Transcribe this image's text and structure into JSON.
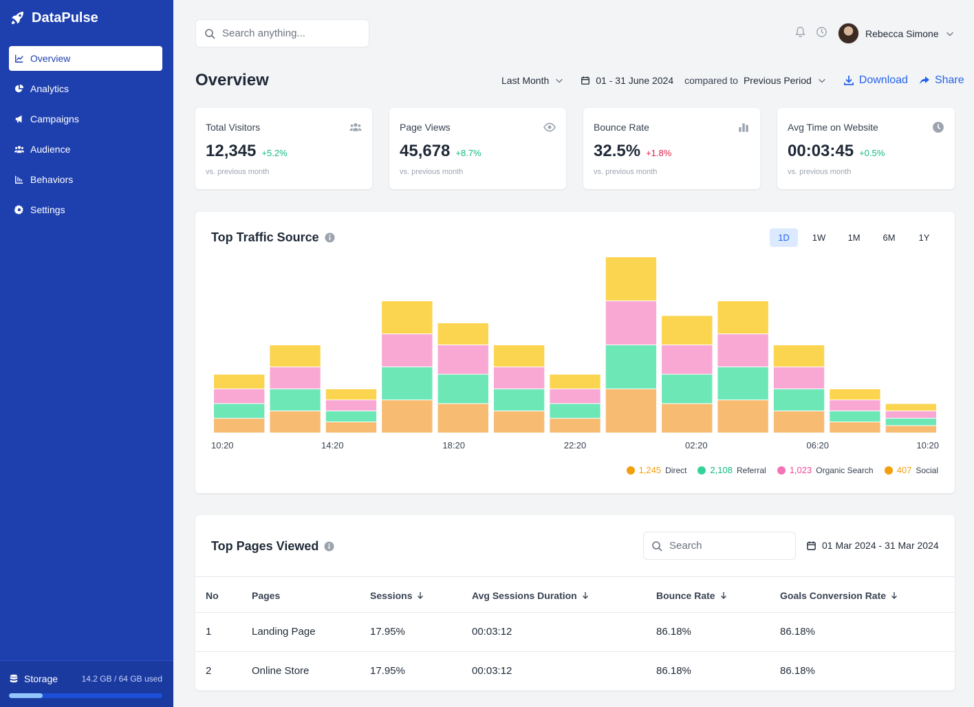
{
  "app": {
    "name": "DataPulse"
  },
  "sidebar": {
    "items": [
      {
        "label": "Overview",
        "icon": "line-chart-icon",
        "active": true
      },
      {
        "label": "Analytics",
        "icon": "pie-chart-icon",
        "active": false
      },
      {
        "label": "Campaigns",
        "icon": "megaphone-icon",
        "active": false
      },
      {
        "label": "Audience",
        "icon": "users-icon",
        "active": false
      },
      {
        "label": "Behaviors",
        "icon": "bar-list-icon",
        "active": false
      },
      {
        "label": "Settings",
        "icon": "gear-icon",
        "active": false
      }
    ],
    "storage": {
      "label": "Storage",
      "used_text": "14.2 GB / 64 GB used",
      "used_fraction": 0.22
    }
  },
  "topbar": {
    "search_placeholder": "Search anything...",
    "user_name": "Rebecca Simone"
  },
  "header": {
    "title": "Overview",
    "period": "Last Month",
    "date_range": "01 - 31 June 2024",
    "compared_label": "compared to",
    "compared_value": "Previous Period",
    "download_label": "Download",
    "share_label": "Share"
  },
  "stats": [
    {
      "label": "Total Visitors",
      "value": "12,345",
      "change": "+5.2%",
      "trend": "up",
      "sub": "vs. previous month",
      "icon": "users-icon"
    },
    {
      "label": "Page Views",
      "value": "45,678",
      "change": "+8.7%",
      "trend": "up",
      "sub": "vs. previous month",
      "icon": "eye-icon"
    },
    {
      "label": "Bounce Rate",
      "value": "32.5%",
      "change": "+1.8%",
      "trend": "bad",
      "sub": "vs. previous month",
      "icon": "bar-chart-icon"
    },
    {
      "label": "Avg Time on Website",
      "value": "00:03:45",
      "change": "+0.5%",
      "trend": "up",
      "sub": "vs. previous month",
      "icon": "clock-icon"
    }
  ],
  "colors": {
    "accent": "#2563eb",
    "sidebar": "#1e40af",
    "positive": "#10b981",
    "negative": "#e11d48",
    "direct": "#f8bb72",
    "referral": "#6ee7b7",
    "organic": "#f9a8d4",
    "social": "#fbd450"
  },
  "traffic": {
    "title": "Top Traffic Source",
    "ranges": [
      {
        "label": "1D",
        "active": true
      },
      {
        "label": "1W",
        "active": false
      },
      {
        "label": "1M",
        "active": false
      },
      {
        "label": "6M",
        "active": false
      },
      {
        "label": "1Y",
        "active": false
      }
    ],
    "legend": [
      {
        "value": "1,245",
        "name": "Direct",
        "dot": "#f59e0b",
        "text": "#f59e0b"
      },
      {
        "value": "2,108",
        "name": "Referral",
        "dot": "#34d399",
        "text": "#10b981"
      },
      {
        "value": "1,023",
        "name": "Organic Search",
        "dot": "#f472b6",
        "text": "#ec4899"
      },
      {
        "value": "407",
        "name": "Social",
        "dot": "#f59e0b",
        "text": "#f59e0b"
      }
    ]
  },
  "chart_data": {
    "type": "bar",
    "stacked": true,
    "categories": [
      "",
      "",
      "",
      "",
      "",
      "",
      "",
      "",
      "",
      "",
      "",
      "",
      ""
    ],
    "x_tick_labels": [
      "10:20",
      "14:20",
      "18:20",
      "22:20",
      "02:20",
      "06:20",
      "10:20"
    ],
    "series": [
      {
        "name": "Direct",
        "color": "#f8bb72",
        "values": [
          2,
          3,
          1.5,
          4.5,
          4,
          3,
          2,
          6,
          4,
          4.5,
          3,
          1.5,
          1
        ]
      },
      {
        "name": "Referral",
        "color": "#6ee7b7",
        "values": [
          2,
          3,
          1.5,
          4.5,
          4,
          3,
          2,
          6,
          4,
          4.5,
          3,
          1.5,
          1
        ]
      },
      {
        "name": "Organic Search",
        "color": "#f9a8d4",
        "values": [
          2,
          3,
          1.5,
          4.5,
          4,
          3,
          2,
          6,
          4,
          4.5,
          3,
          1.5,
          1
        ]
      },
      {
        "name": "Social",
        "color": "#fbd450",
        "values": [
          2,
          3,
          1.5,
          4.5,
          3,
          3,
          2,
          6,
          4,
          4.5,
          3,
          1.5,
          1
        ]
      }
    ],
    "ylim": [
      0,
      24
    ],
    "grid": false
  },
  "pages": {
    "title": "Top Pages Viewed",
    "search_placeholder": "Search",
    "date_range": "01 Mar 2024 - 31 Mar 2024",
    "columns": [
      "No",
      "Pages",
      "Sessions",
      "Avg Sessions Duration",
      "Bounce Rate",
      "Goals Conversion Rate"
    ],
    "rows": [
      [
        "1",
        "Landing Page",
        "17.95%",
        "00:03:12",
        "86.18%",
        "86.18%"
      ],
      [
        "2",
        "Online Store",
        "17.95%",
        "00:03:12",
        "86.18%",
        "86.18%"
      ]
    ]
  }
}
